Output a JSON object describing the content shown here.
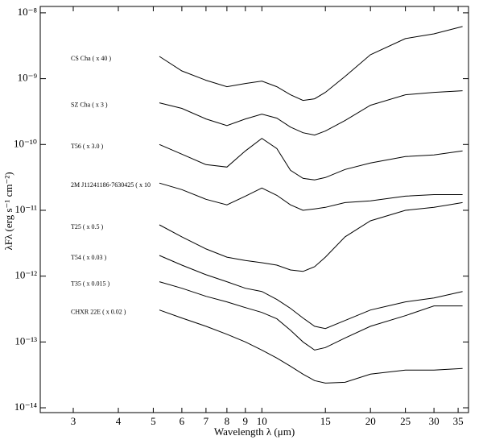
{
  "chart_data": {
    "type": "line",
    "x_label": "Wavelength λ (μm)",
    "y_label": "λFλ (erg s⁻¹ cm⁻²)",
    "xscale": "log",
    "yscale": "log",
    "color": "#000000",
    "xlim": [
      2.43,
      37.4
    ],
    "ylim": [
      8.45e-15,
      1.25e-08
    ],
    "xticks": [
      3,
      4,
      5,
      6,
      7,
      8,
      9,
      10,
      15,
      20,
      25,
      30,
      35
    ],
    "yticks": [
      {
        "value": 1e-08,
        "label": "10⁻⁸"
      },
      {
        "value": 1e-09,
        "label": "10⁻⁹"
      },
      {
        "value": 1e-10,
        "label": "10⁻¹⁰"
      },
      {
        "value": 1e-11,
        "label": "10⁻¹¹"
      },
      {
        "value": 1e-12,
        "label": "10⁻¹²"
      },
      {
        "value": 1e-13,
        "label": "10⁻¹³"
      },
      {
        "value": 1e-14,
        "label": "10⁻¹⁴"
      }
    ],
    "x": [
      5.2,
      6,
      7,
      8,
      9,
      10,
      11,
      12,
      13,
      14,
      15,
      17,
      20,
      25,
      30,
      36
    ],
    "series": [
      {
        "name": "CS Cha ( x 40 )",
        "values": [
          2.18e-09,
          1.31e-09,
          9.45e-10,
          7.54e-10,
          8.44e-10,
          9.19e-10,
          7.54e-10,
          5.69e-10,
          4.67e-10,
          4.94e-10,
          6.19e-10,
          1.08e-09,
          2.31e-09,
          4.06e-09,
          4.8e-09,
          6.19e-09
        ]
      },
      {
        "name": "SZ Cha ( x 3 )",
        "values": [
          4.29e-10,
          3.53e-10,
          2.44e-10,
          1.94e-10,
          2.44e-10,
          2.89e-10,
          2.51e-10,
          1.84e-10,
          1.51e-10,
          1.39e-10,
          1.6e-10,
          2.31e-10,
          3.95e-10,
          5.69e-10,
          6.19e-10,
          6.55e-10
        ]
      },
      {
        "name": "T56 ( x 3.0 )",
        "values": [
          1e-10,
          7.13e-11,
          4.94e-11,
          4.54e-11,
          7.98e-11,
          1.24e-10,
          8.68e-11,
          4.06e-11,
          3.06e-11,
          2.89e-11,
          3.15e-11,
          4.17e-11,
          5.23e-11,
          6.55e-11,
          6.93e-11,
          7.98e-11
        ]
      },
      {
        "name": "2M J11241186-7630425 ( x 10",
        "values": [
          2.59e-11,
          2.06e-11,
          1.47e-11,
          1.21e-11,
          1.64e-11,
          2.18e-11,
          1.69e-11,
          1.21e-11,
          1e-11,
          1.05e-11,
          1.11e-11,
          1.31e-11,
          1.39e-11,
          1.64e-11,
          1.73e-11,
          1.73e-11
        ]
      },
      {
        "name": "T25 ( x 0.5 )",
        "values": [
          6.02e-12,
          3.95e-12,
          2.59e-12,
          1.94e-12,
          1.73e-12,
          1.6e-12,
          1.47e-12,
          1.24e-12,
          1.18e-12,
          1.39e-12,
          1.94e-12,
          3.95e-12,
          6.93e-12,
          1e-11,
          1.11e-11,
          1.31e-11
        ]
      },
      {
        "name": "T54 ( x 0.03 )",
        "values": [
          2.06e-12,
          1.47e-12,
          1.05e-12,
          8.22e-13,
          6.55e-13,
          5.85e-13,
          4.42e-13,
          3.24e-13,
          2.31e-13,
          1.73e-13,
          1.6e-13,
          2.12e-13,
          3.06e-13,
          4.06e-13,
          4.67e-13,
          5.85e-13
        ]
      },
      {
        "name": "T35 ( x 0.015 )",
        "values": [
          8.22e-13,
          6.55e-13,
          4.94e-13,
          4.06e-13,
          3.33e-13,
          2.81e-13,
          2.25e-13,
          1.51e-13,
          1e-13,
          7.54e-14,
          8.22e-14,
          1.15e-13,
          1.73e-13,
          2.51e-13,
          3.53e-13,
          3.53e-13
        ]
      },
      {
        "name": "CHXR 22E ( x 0.02 )",
        "values": [
          3.06e-13,
          2.31e-13,
          1.73e-13,
          1.31e-13,
          1e-13,
          7.54e-14,
          5.69e-14,
          4.29e-14,
          3.24e-14,
          2.59e-14,
          2.37e-14,
          2.44e-14,
          3.24e-14,
          3.73e-14,
          3.73e-14,
          3.95e-14
        ]
      }
    ]
  }
}
